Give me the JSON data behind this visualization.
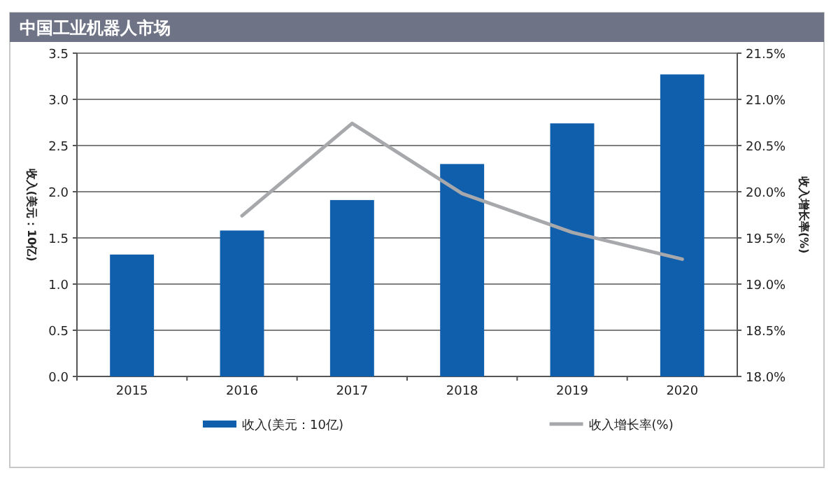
{
  "chart_data": {
    "type": "bar",
    "title": "中国工业机器人市场",
    "categories": [
      "2015",
      "2016",
      "2017",
      "2018",
      "2019",
      "2020"
    ],
    "series": [
      {
        "name": "收入(美元：10亿)",
        "color": "#0f5fad",
        "values": [
          1.32,
          1.58,
          1.91,
          2.3,
          2.74,
          3.27
        ]
      },
      {
        "name": "收入增长率(%)",
        "type": "line",
        "axis": "y2",
        "color": "#a6a8ab",
        "values": [
          null,
          19.74,
          20.74,
          19.98,
          19.56,
          19.27
        ]
      }
    ],
    "ylabel": "收入(美元：10亿)",
    "y2label": "收入增长率(%)",
    "ylim": [
      0,
      3.5
    ],
    "yticks": [
      {
        "value": 0,
        "label": "0.0"
      },
      {
        "value": 0.5,
        "label": "0.5"
      },
      {
        "value": 1,
        "label": "1.0"
      },
      {
        "value": 1.5,
        "label": "1.5"
      },
      {
        "value": 2,
        "label": "2.0"
      },
      {
        "value": 2.5,
        "label": "2.5"
      },
      {
        "value": 3,
        "label": "3.0"
      },
      {
        "value": 3.5,
        "label": "3.5"
      }
    ],
    "y2lim": [
      18,
      21.5
    ],
    "y2ticks": [
      {
        "value": 18,
        "label": "18.0%"
      },
      {
        "value": 18.5,
        "label": "18.5%"
      },
      {
        "value": 19,
        "label": "19.0%"
      },
      {
        "value": 19.5,
        "label": "19.5%"
      },
      {
        "value": 20,
        "label": "20.0%"
      },
      {
        "value": 20.5,
        "label": "20.5%"
      },
      {
        "value": 21,
        "label": "21.0%"
      },
      {
        "value": 21.5,
        "label": "21.5%"
      }
    ],
    "grid": "y",
    "legend": "bottom"
  }
}
